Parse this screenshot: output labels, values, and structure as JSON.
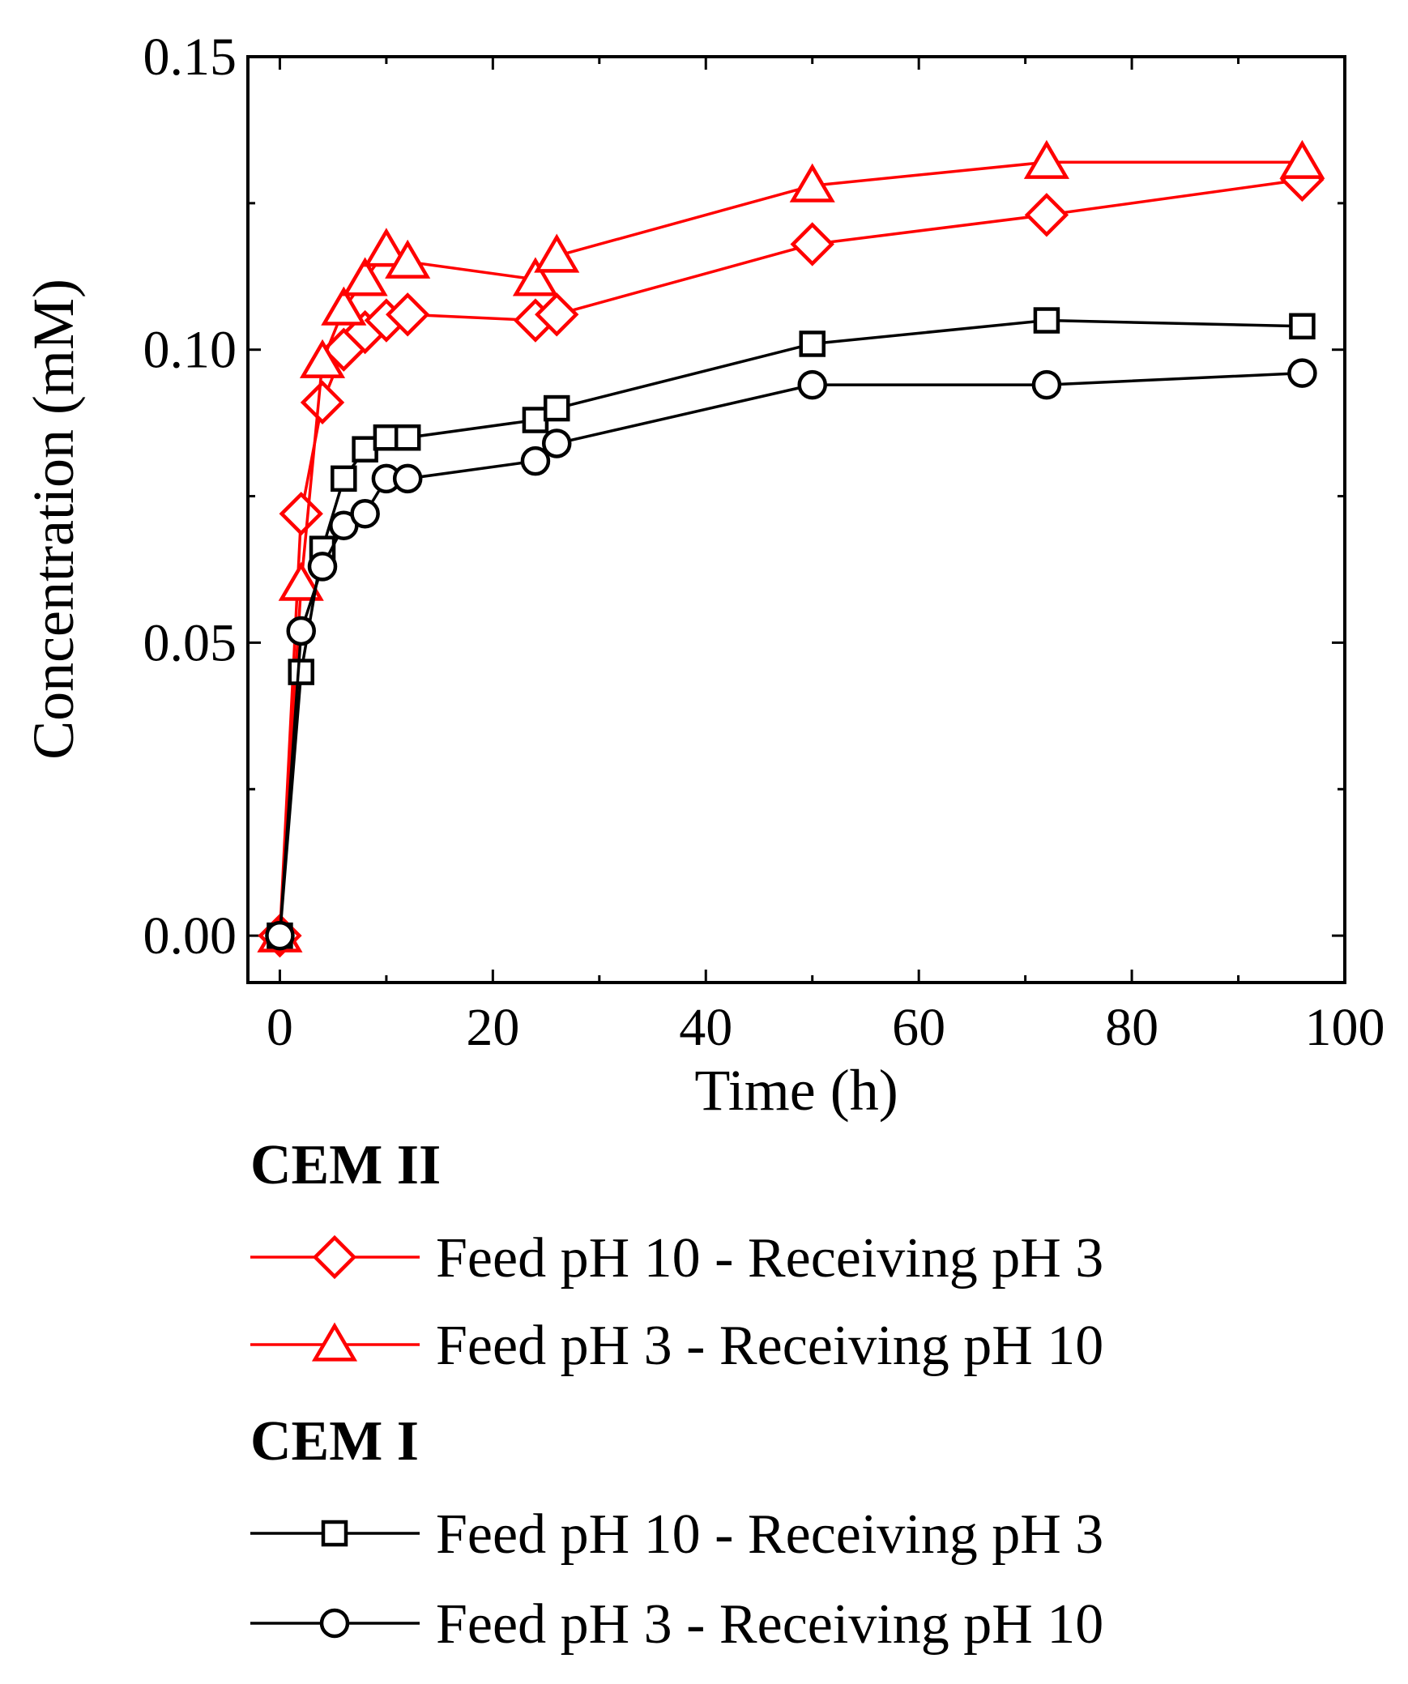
{
  "chart_data": {
    "type": "line",
    "title": "",
    "xlabel": "Time (h)",
    "ylabel": "Concentration (mM)",
    "xlim": [
      -3,
      100
    ],
    "ylim": [
      -0.008,
      0.15
    ],
    "xticks": [
      0,
      20,
      40,
      60,
      80,
      100
    ],
    "xtick_labels": [
      "0",
      "20",
      "40",
      "60",
      "80",
      "100"
    ],
    "yticks": [
      0.0,
      0.05,
      0.1,
      0.15
    ],
    "ytick_labels": [
      "0.00",
      "0.05",
      "0.10",
      "0.15"
    ],
    "grid": false,
    "legend_groups": [
      {
        "heading": "CEM II",
        "entries": [
          {
            "series_index": 0,
            "label": "Feed pH 10 - Receiving pH 3"
          },
          {
            "series_index": 1,
            "label": "Feed pH 3 - Receiving pH 10"
          }
        ]
      },
      {
        "heading": "CEM I",
        "entries": [
          {
            "series_index": 2,
            "label": "Feed pH 10 - Receiving pH 3"
          },
          {
            "series_index": 3,
            "label": "Feed pH 3 - Receiving pH 10"
          }
        ]
      }
    ],
    "series": [
      {
        "name": "CEM II Feed pH 10 - Receiving pH 3",
        "marker": "diamond",
        "color": "#ff0000",
        "x": [
          0,
          2,
          4,
          6,
          8,
          10,
          12,
          24,
          26,
          50,
          72,
          96
        ],
        "y": [
          0.0,
          0.072,
          0.091,
          0.1,
          0.103,
          0.105,
          0.106,
          0.105,
          0.106,
          0.118,
          0.123,
          0.129
        ]
      },
      {
        "name": "CEM II Feed pH 3 - Receiving pH 10",
        "marker": "triangle",
        "color": "#ff0000",
        "x": [
          0,
          2,
          4,
          6,
          8,
          10,
          12,
          24,
          26,
          50,
          72,
          96
        ],
        "y": [
          0.0,
          0.06,
          0.098,
          0.107,
          0.112,
          0.117,
          0.115,
          0.112,
          0.116,
          0.128,
          0.132,
          0.132
        ]
      },
      {
        "name": "CEM I Feed pH 10 - Receiving pH 3",
        "marker": "square",
        "color": "#000000",
        "x": [
          0,
          2,
          4,
          6,
          8,
          10,
          12,
          24,
          26,
          50,
          72,
          96
        ],
        "y": [
          0.0,
          0.045,
          0.066,
          0.078,
          0.083,
          0.085,
          0.085,
          0.088,
          0.09,
          0.101,
          0.105,
          0.104
        ]
      },
      {
        "name": "CEM I Feed pH 3 - Receiving pH 10",
        "marker": "circle",
        "color": "#000000",
        "x": [
          0,
          2,
          4,
          6,
          8,
          10,
          12,
          24,
          26,
          50,
          72,
          96
        ],
        "y": [
          0.0,
          0.052,
          0.063,
          0.07,
          0.072,
          0.078,
          0.078,
          0.081,
          0.084,
          0.094,
          0.094,
          0.096
        ]
      }
    ]
  }
}
